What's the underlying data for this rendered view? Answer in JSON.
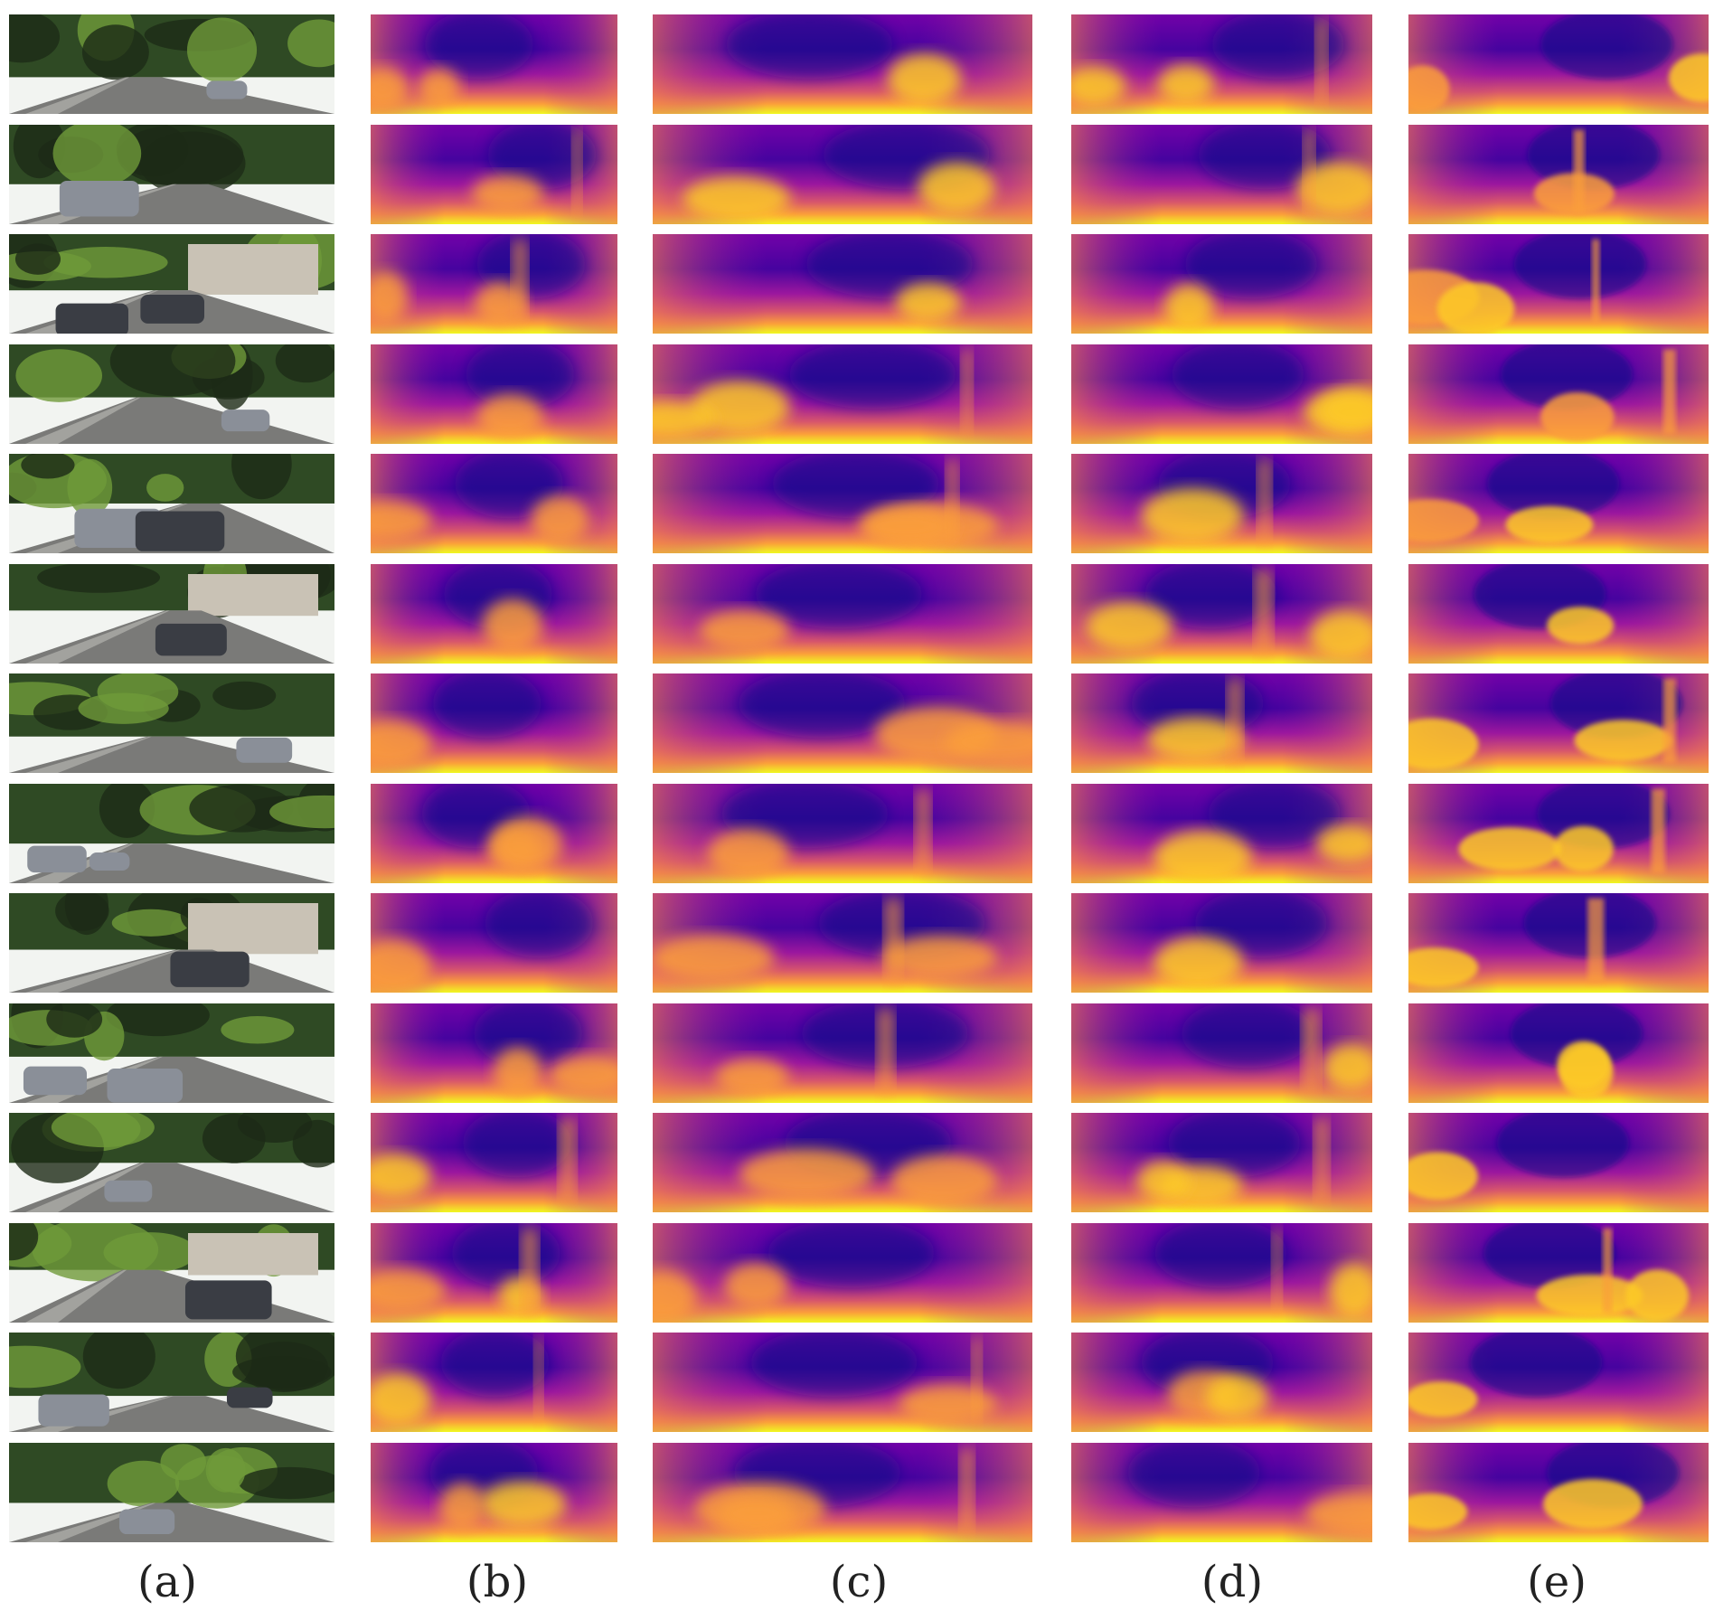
{
  "figure": {
    "panel_labels": [
      "(a)",
      "(b)",
      "(c)",
      "(d)",
      "(e)"
    ],
    "row_count": 14,
    "colormap": [
      "#0d0887",
      "#46039f",
      "#7201a8",
      "#9c179e",
      "#bd3786",
      "#d8576b",
      "#ed7953",
      "#fb9f3a",
      "#fdca26",
      "#f0f921"
    ],
    "photo_palette": {
      "sky": "#f2f4f1",
      "foliage": "#2f4a24",
      "foliage_dark": "#1d2b17",
      "road": "#7a7a78",
      "road_light": "#bdbcb8",
      "grass": "#6f9a3a",
      "car": "#8a8f98",
      "building": "#c9c2b5"
    }
  }
}
